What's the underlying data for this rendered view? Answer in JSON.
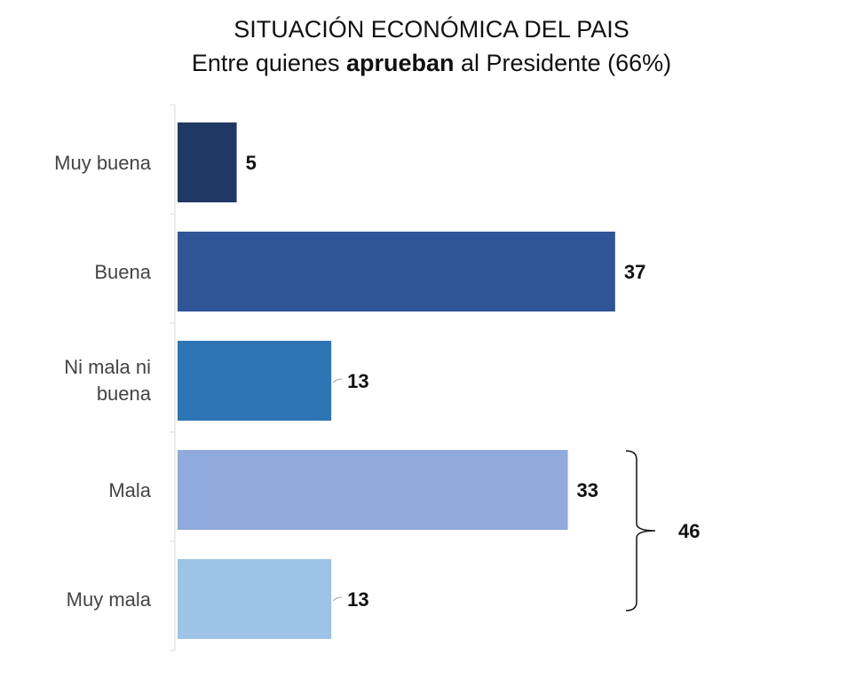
{
  "chart_data": {
    "type": "bar",
    "orientation": "horizontal",
    "title": "SITUACIÓN ECONÓMICA DEL PAIS",
    "subtitle": {
      "before": "Entre quienes ",
      "bold": "aprueban",
      "after": " al Presidente (66%)"
    },
    "categories": [
      "Muy buena",
      "Buena",
      "Ni mala ni buena",
      "Mala",
      "Muy mala"
    ],
    "values": [
      5,
      37,
      13,
      33,
      13
    ],
    "colors": [
      "#203864",
      "#2F5597",
      "#2E75B6",
      "#8FAADC",
      "#9DC3E6"
    ],
    "grid": false,
    "annotation": {
      "label": "46",
      "groups": [
        "Mala",
        "Muy mala"
      ]
    }
  }
}
